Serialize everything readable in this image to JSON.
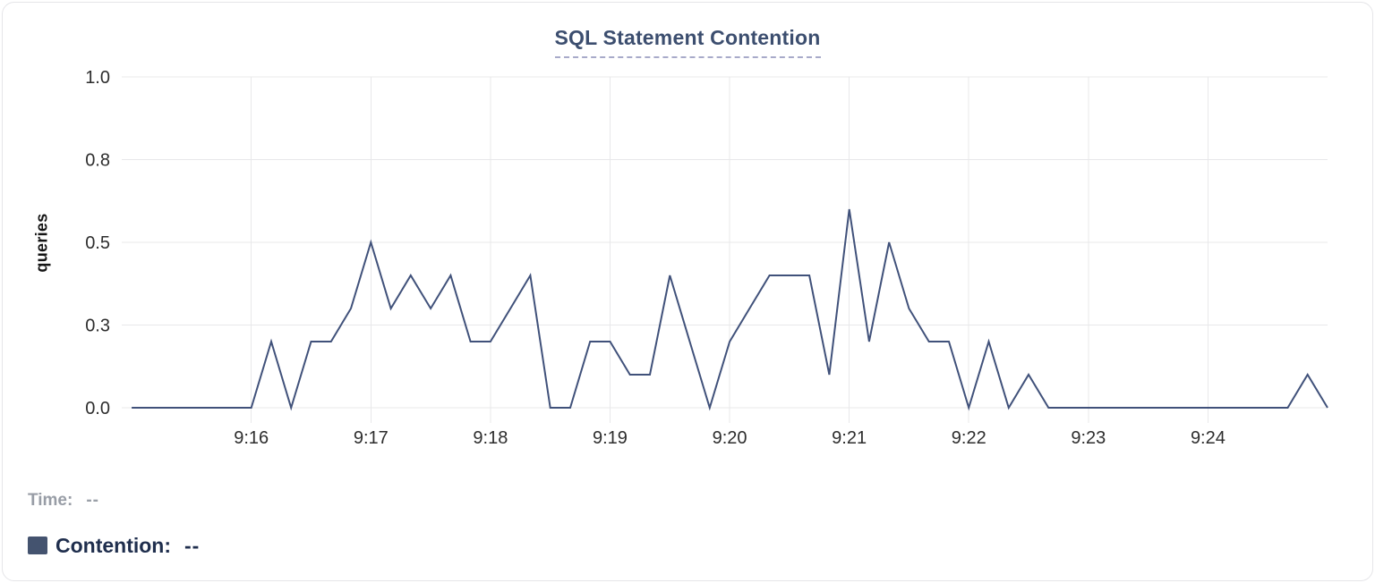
{
  "panel": {
    "title": "SQL Statement Contention"
  },
  "tooltip": {
    "time_label": "Time:",
    "time_value": "--",
    "contention_label": "Contention:",
    "contention_value": "--"
  },
  "colors": {
    "line": "#40517a",
    "legend_swatch": "#44536f",
    "title_text": "#3c4e6f",
    "title_underline": "#a8aac9",
    "gridline": "#e8e8ea",
    "tick_text": "#2d2d2d",
    "time_label_text": "#989da6",
    "contention_label_text": "#1f2e4d"
  },
  "chart_data": {
    "type": "line",
    "title": "SQL Statement Contention",
    "xlabel": "",
    "ylabel": "queries",
    "ylim": [
      0,
      1
    ],
    "grid": true,
    "legend_position": "bottom-left",
    "y_ticks": [
      {
        "value": 0.0,
        "label": "0.0"
      },
      {
        "value": 0.25,
        "label": "0.3"
      },
      {
        "value": 0.5,
        "label": "0.5"
      },
      {
        "value": 0.75,
        "label": "0.8"
      },
      {
        "value": 1.0,
        "label": "1.0"
      }
    ],
    "x_domain": [
      "9:14:55",
      "9:25:00"
    ],
    "x_ticks": [
      "9:16",
      "9:17",
      "9:18",
      "9:19",
      "9:20",
      "9:21",
      "9:22",
      "9:23",
      "9:24"
    ],
    "series": [
      {
        "name": "Contention",
        "color": "#40517a",
        "start_time": "9:15:00",
        "interval_seconds": 10,
        "values": [
          0,
          0,
          0,
          0,
          0,
          0,
          0,
          0.2,
          0,
          0.2,
          0.2,
          0.3,
          0.5,
          0.3,
          0.4,
          0.3,
          0.4,
          0.2,
          0.2,
          0.3,
          0.4,
          0,
          0,
          0.2,
          0.2,
          0.1,
          0.1,
          0.4,
          0.2,
          0,
          0.2,
          0.3,
          0.4,
          0.4,
          0.4,
          0.1,
          0.6,
          0.2,
          0.5,
          0.3,
          0.2,
          0.2,
          0,
          0.2,
          0,
          0.1,
          0,
          0,
          0,
          0,
          0,
          0,
          0,
          0,
          0,
          0,
          0,
          0,
          0,
          0.1,
          0
        ]
      }
    ]
  }
}
